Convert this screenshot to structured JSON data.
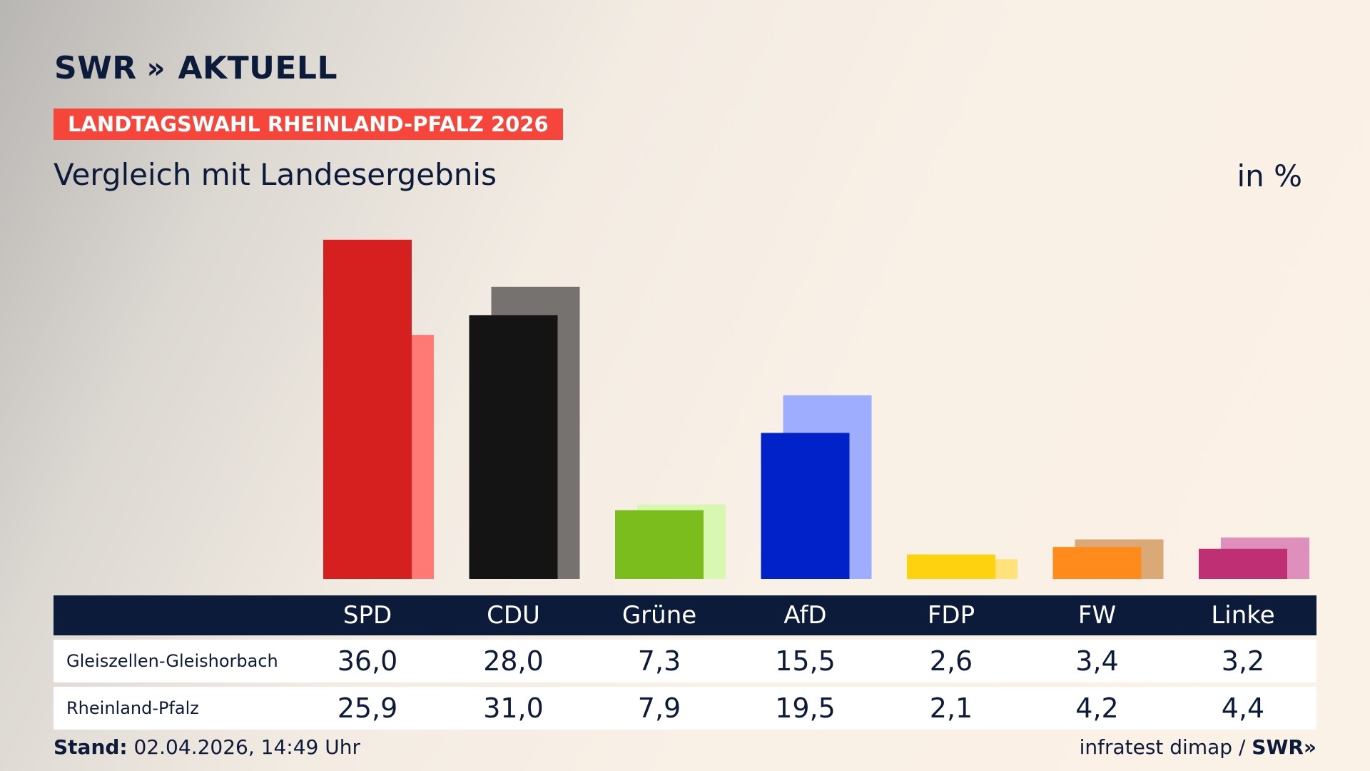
{
  "header": {
    "brand": "SWR",
    "brand_chevrons": "»",
    "product": "AKTUELL",
    "tag": "LANDTAGSWAHL RHEINLAND-PFALZ 2026",
    "subtitle": "Vergleich mit Landesergebnis",
    "unit": "in %"
  },
  "chart_data": {
    "type": "bar",
    "categories": [
      "SPD",
      "CDU",
      "Grüne",
      "AfD",
      "FDP",
      "FW",
      "Linke"
    ],
    "series": [
      {
        "name": "Gleiszellen-Gleishorbach",
        "values": [
          36.0,
          28.0,
          7.3,
          15.5,
          2.6,
          3.4,
          3.2
        ],
        "colors": [
          "#d62020",
          "#141414",
          "#7cbd1e",
          "#0022c8",
          "#ffd20f",
          "#ff8b1c",
          "#be2f73"
        ],
        "labels": [
          "36,0",
          "28,0",
          "7,3",
          "15,5",
          "2,6",
          "3,4",
          "3,2"
        ]
      },
      {
        "name": "Rheinland-Pfalz",
        "values": [
          25.9,
          31.0,
          7.9,
          19.5,
          2.1,
          4.2,
          4.4
        ],
        "colors": [
          "#ff7a74",
          "#767270",
          "#d8f7b0",
          "#9fadff",
          "#ffe27a",
          "#dba878",
          "#df8fbb"
        ],
        "labels": [
          "25,9",
          "31,0",
          "7,9",
          "19,5",
          "2,1",
          "4,2",
          "4,4"
        ]
      }
    ],
    "ylim": [
      0,
      36
    ]
  },
  "footer": {
    "stand_label": "Stand:",
    "stand_value": "02.04.2026, 14:49 Uhr",
    "source": "infratest dimap /",
    "source_brand": "SWR»"
  }
}
